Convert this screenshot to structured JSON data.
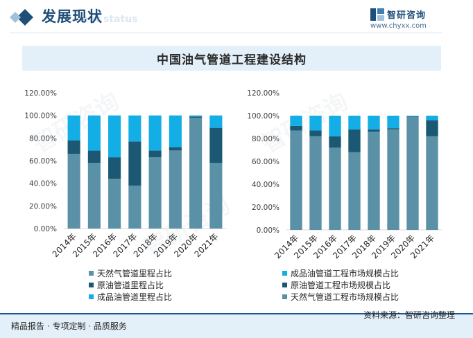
{
  "header": {
    "title": "发展现状",
    "subtitle": "ent status",
    "brand_name": "智研咨询",
    "brand_url": "www.chyxx.com"
  },
  "title": "中国油气管道工程建设结构",
  "colors": {
    "natural_gas": "#5b91a7",
    "crude_oil": "#1a5874",
    "refined_oil": "#12aee5",
    "axis": "#d9d9d9",
    "header": "#1f4e79"
  },
  "chart_data": [
    {
      "type": "bar",
      "stacked": true,
      "categories": [
        "2014年",
        "2015年",
        "2016年",
        "2017年",
        "2018年",
        "2019年",
        "2020年",
        "2021年"
      ],
      "series": [
        {
          "name": "天然气管道里程占比",
          "color": "#5b91a7",
          "values": [
            66,
            58,
            44,
            38,
            63,
            69,
            98,
            58
          ]
        },
        {
          "name": "原油管道里程占比",
          "color": "#1a5874",
          "values": [
            12,
            11,
            19,
            39,
            6,
            3,
            1,
            31
          ]
        },
        {
          "name": "成品油管道里程占比",
          "color": "#12aee5",
          "values": [
            22,
            31,
            37,
            23,
            31,
            28,
            1,
            11
          ]
        }
      ],
      "yticks": [
        "0.00%",
        "20.00%",
        "40.00%",
        "60.00%",
        "80.00%",
        "100.00%",
        "120.00%"
      ],
      "ylim": [
        0,
        120
      ],
      "legend": [
        "天然气管道里程占比",
        "原油管道里程占比",
        "成品油管道里程占比"
      ],
      "legend_position": "bottom"
    },
    {
      "type": "bar",
      "stacked": true,
      "categories": [
        "2014年",
        "2015年",
        "2016年",
        "2017年",
        "2018年",
        "2019年",
        "2020年",
        "2021年"
      ],
      "series": [
        {
          "name": "天然气管道工程市场规模占比",
          "color": "#5b91a7",
          "values": [
            87,
            82,
            72,
            68,
            86,
            88,
            99,
            82
          ]
        },
        {
          "name": "原油管道工程市场规模占比",
          "color": "#1a5874",
          "values": [
            4,
            5,
            10,
            20,
            2,
            1,
            0.5,
            14
          ]
        },
        {
          "name": "成品油管道工程市场规模占比",
          "color": "#12aee5",
          "values": [
            9,
            13,
            18,
            12,
            12,
            11,
            0.5,
            4
          ]
        }
      ],
      "yticks": [
        "0.00%",
        "20.00%",
        "40.00%",
        "60.00%",
        "80.00%",
        "100.00%",
        "120.00%"
      ],
      "ylim": [
        0,
        120
      ],
      "legend": [
        "成品油管道工程市场规模占比",
        "原油管道工程市场规模占比",
        "天然气管道工程市场规模占比"
      ],
      "legend_position": "bottom"
    }
  ],
  "footer": {
    "left": "精品报告 · 专项定制 · 品质服务",
    "right": "资料来源：智研咨询整理"
  }
}
